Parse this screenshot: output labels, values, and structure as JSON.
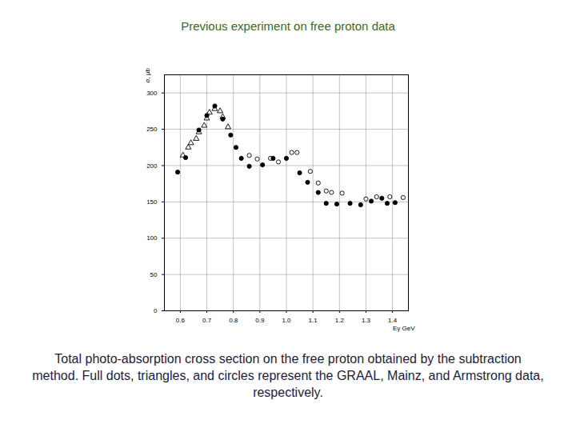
{
  "chart_data": {
    "type": "scatter",
    "title": "Previous experiment on free proton data",
    "caption": "Total photo-absorption cross section on the free proton obtained by the subtraction method. Full dots, triangles, and circles represent the GRAAL, Mainz, and Armstrong data, respectively.",
    "x_label": "Eγ GeV",
    "y_label": "σ, μb",
    "xlim": [
      0.54,
      1.46
    ],
    "xticks": [
      0.6,
      0.7,
      0.8,
      0.9,
      1,
      1.1,
      1.2,
      1.3,
      1.4
    ],
    "ylim": [
      0,
      325
    ],
    "yticks": [
      0,
      50,
      100,
      150,
      200,
      250,
      300
    ],
    "grid": true,
    "series": [
      {
        "name": "GRAAL",
        "marker": "dot",
        "color": "#000000",
        "x": [
          0.59,
          0.62,
          0.67,
          0.7,
          0.73,
          0.76,
          0.79,
          0.81,
          0.83,
          0.86,
          0.91,
          0.95,
          1.0,
          1.05,
          1.08,
          1.12,
          1.15,
          1.19,
          1.24,
          1.28,
          1.32,
          1.36,
          1.38,
          1.41
        ],
        "values": [
          191,
          211,
          249,
          269,
          282,
          264,
          242,
          225,
          210,
          199,
          201,
          210,
          210,
          190,
          177,
          163,
          148,
          147,
          148,
          146,
          151,
          155,
          148,
          149
        ]
      },
      {
        "name": "Mainz",
        "marker": "triangle",
        "color": "#000000",
        "x": [
          0.61,
          0.63,
          0.64,
          0.66,
          0.67,
          0.69,
          0.7,
          0.71,
          0.73,
          0.75,
          0.76,
          0.78
        ],
        "values": [
          214,
          225,
          231,
          237,
          246,
          255,
          265,
          273,
          278,
          275,
          267,
          253
        ]
      },
      {
        "name": "Armstrong",
        "marker": "circle",
        "color": "#000000",
        "x": [
          0.86,
          0.89,
          0.94,
          0.97,
          1.02,
          1.04,
          1.09,
          1.12,
          1.15,
          1.17,
          1.21,
          1.3,
          1.34,
          1.39,
          1.44
        ],
        "values": [
          214,
          209,
          210,
          205,
          218,
          218,
          192,
          176,
          165,
          163,
          162,
          154,
          157,
          157,
          156
        ]
      }
    ]
  }
}
